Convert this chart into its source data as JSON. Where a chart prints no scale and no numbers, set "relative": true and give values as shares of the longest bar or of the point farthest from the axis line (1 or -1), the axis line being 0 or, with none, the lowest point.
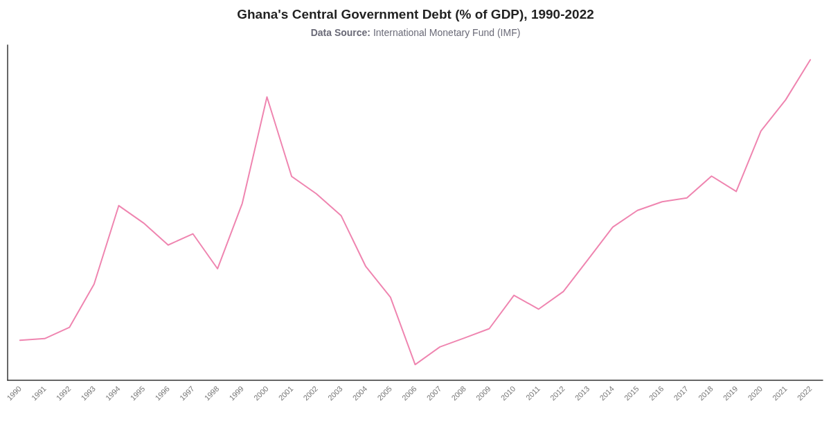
{
  "chart_data": {
    "type": "line",
    "title": "Ghana's Central Government Debt (% of GDP), 1990-2022",
    "subtitle": "Data Source: International Monetary Fund (IMF)",
    "relative": true,
    "categories": [
      "1990",
      "1991",
      "1992",
      "1993",
      "1994",
      "1995",
      "1996",
      "1997",
      "1998",
      "1999",
      "2000",
      "2001",
      "2002",
      "2003",
      "2004",
      "2005",
      "2006",
      "2007",
      "2008",
      "2009",
      "2010",
      "2011",
      "2012",
      "2013",
      "2014",
      "2015",
      "2016",
      "2017",
      "2018",
      "2019",
      "2020",
      "2021",
      "2022"
    ],
    "series": [
      {
        "color": "#ef85b0",
        "values": [
          0.125,
          0.13,
          0.165,
          0.3,
          0.545,
          0.491,
          0.422,
          0.457,
          0.348,
          0.552,
          0.884,
          0.636,
          0.582,
          0.514,
          0.355,
          0.259,
          0.049,
          0.104,
          0.132,
          0.161,
          0.265,
          0.222,
          0.277,
          0.377,
          0.478,
          0.53,
          0.557,
          0.569,
          0.637,
          0.589,
          0.778,
          0.875,
          1.0
        ]
      }
    ],
    "grid": false,
    "marker": "none",
    "line_style": "solid"
  }
}
